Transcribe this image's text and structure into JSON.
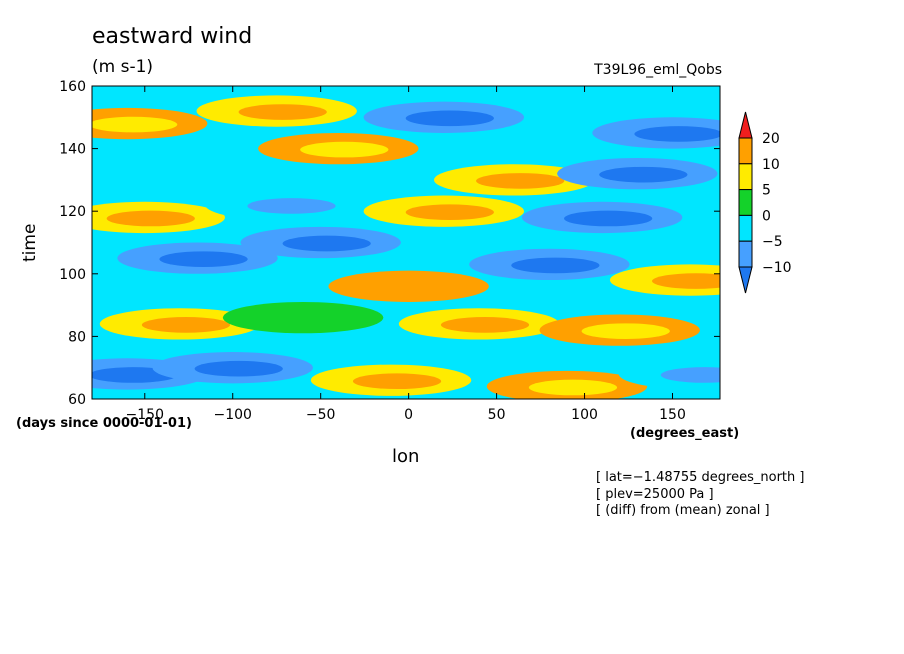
{
  "chart_data": {
    "type": "heatmap",
    "title": "eastward wind",
    "units": "(m s-1)",
    "run_label": "T39L96_eml_Qobs",
    "xlabel": "lon",
    "ylabel": "time",
    "x_units": "(degrees_east)",
    "y_units": "(days since 0000-01-01)",
    "xlim": [
      -180,
      177
    ],
    "ylim": [
      60,
      160
    ],
    "x_ticks": [
      -150,
      -100,
      -50,
      0,
      50,
      100,
      150
    ],
    "x_tick_labels": [
      "−150",
      "−100",
      "−50",
      "0",
      "50",
      "100",
      "150"
    ],
    "y_ticks": [
      60,
      80,
      100,
      120,
      140,
      160
    ],
    "y_tick_labels": [
      "60",
      "80",
      "100",
      "120",
      "140",
      "160"
    ],
    "colorbar": {
      "levels": [
        -10,
        -5,
        0,
        5,
        10,
        20
      ],
      "labels": [
        "−10",
        "−5",
        "0",
        "5",
        "10",
        "20"
      ],
      "colors": [
        "#1e78f0",
        "#46a0ff",
        "#00e6ff",
        "#14d22a",
        "#ffeb00",
        "#ffa000",
        "#f01e1e"
      ]
    },
    "notes": [
      "[ lat=−1.48755 degrees_north ]",
      "[ plev=25000 Pa ]",
      "[ (diff) from (mean) zonal ]"
    ],
    "regions": [
      {
        "x": -160,
        "y": 148,
        "value": 12
      },
      {
        "x": -75,
        "y": 152,
        "value": 8
      },
      {
        "x": 20,
        "y": 150,
        "value": -7
      },
      {
        "x": 150,
        "y": 145,
        "value": -6
      },
      {
        "x": -130,
        "y": 137,
        "value": -4
      },
      {
        "x": -40,
        "y": 140,
        "value": 10
      },
      {
        "x": 60,
        "y": 130,
        "value": 8
      },
      {
        "x": 130,
        "y": 132,
        "value": -8
      },
      {
        "x": -150,
        "y": 118,
        "value": 6
      },
      {
        "x": -70,
        "y": 122,
        "value": -5
      },
      {
        "x": 20,
        "y": 120,
        "value": 6
      },
      {
        "x": 110,
        "y": 118,
        "value": -6
      },
      {
        "x": -120,
        "y": 105,
        "value": -8
      },
      {
        "x": -50,
        "y": 110,
        "value": -6
      },
      {
        "x": 0,
        "y": 96,
        "value": 15
      },
      {
        "x": 80,
        "y": 103,
        "value": -7
      },
      {
        "x": 160,
        "y": 98,
        "value": 8
      },
      {
        "x": -130,
        "y": 84,
        "value": 7
      },
      {
        "x": -60,
        "y": 86,
        "value": 3
      },
      {
        "x": 40,
        "y": 84,
        "value": 9
      },
      {
        "x": 120,
        "y": 82,
        "value": 12
      },
      {
        "x": -160,
        "y": 68,
        "value": -9
      },
      {
        "x": -100,
        "y": 70,
        "value": -6
      },
      {
        "x": -10,
        "y": 66,
        "value": 6
      },
      {
        "x": 90,
        "y": 64,
        "value": 10
      },
      {
        "x": 165,
        "y": 68,
        "value": -5
      }
    ],
    "background_value": -3
  }
}
